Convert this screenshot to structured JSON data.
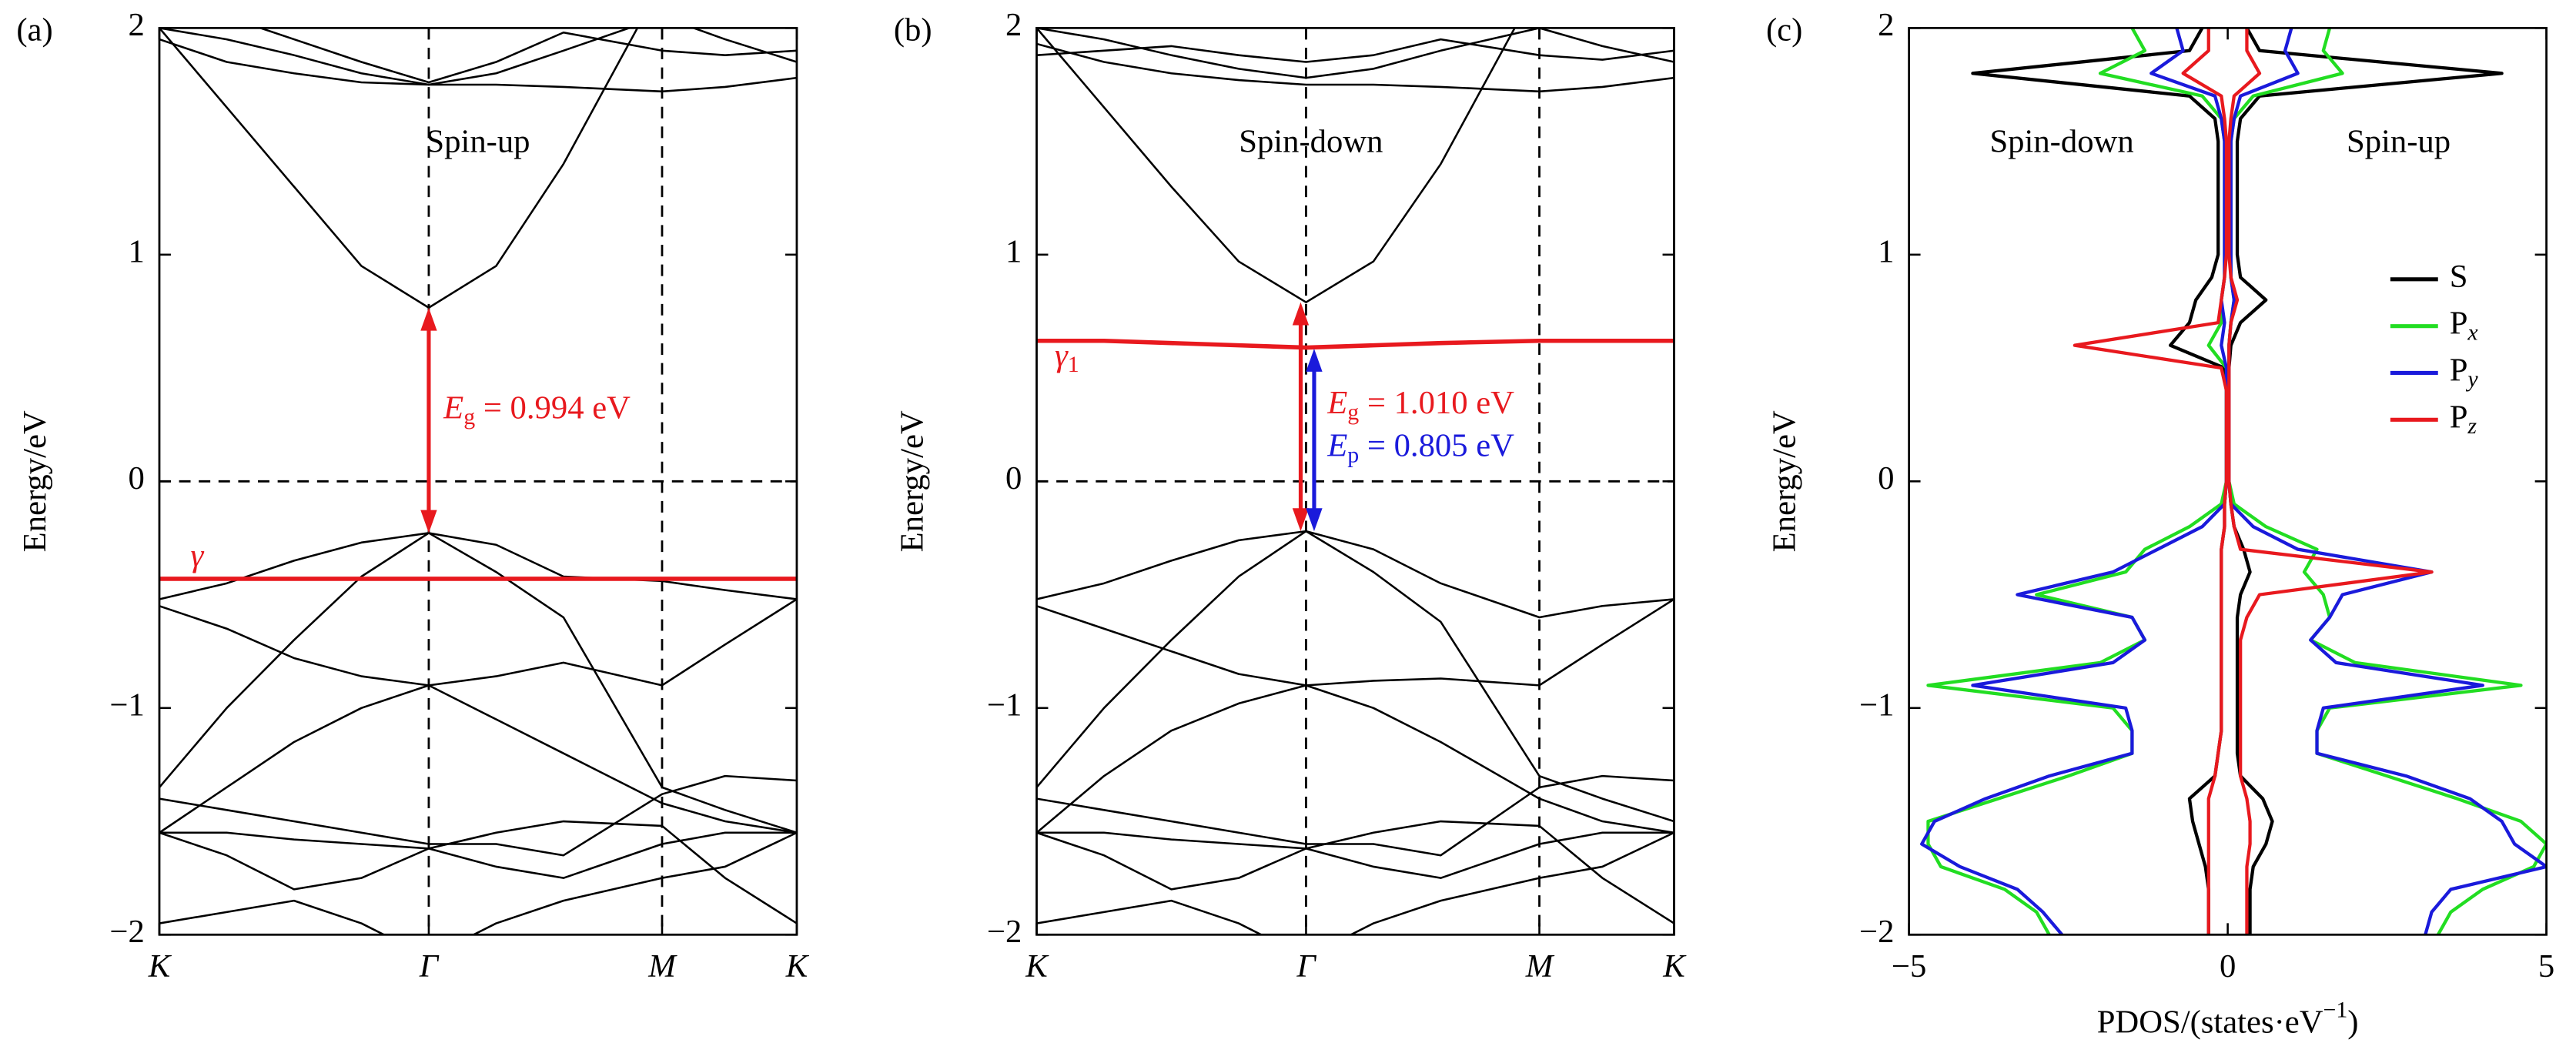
{
  "chart_data": [
    {
      "type": "line",
      "label": "(a)",
      "ylabel": "Energy/eV",
      "annotations": [
        "Spin-up"
      ],
      "guides": true,
      "x": [
        0,
        0.25,
        0.5,
        0.75,
        1,
        1.25,
        1.5,
        1.866,
        2.1,
        2.366
      ],
      "xlim": [
        0,
        2.366
      ],
      "xticks": [
        {
          "value": 0,
          "label": "K"
        },
        {
          "value": 1,
          "label": "Γ"
        },
        {
          "value": 1.866,
          "label": "M"
        },
        {
          "value": 2.366,
          "label": "K"
        }
      ],
      "ylim": [
        -2,
        2
      ],
      "yticks": [
        {
          "value": -2,
          "label": "−2"
        },
        {
          "value": -1,
          "label": "−1"
        },
        0,
        1,
        2
      ],
      "series": [
        {
          "color": "#000000",
          "values": [
            2.0,
            1.65,
            1.3,
            0.95,
            0.766,
            0.95,
            1.4,
            2.2,
            null,
            null
          ]
        },
        {
          "color": "#000000",
          "values": [
            1.95,
            1.85,
            1.8,
            1.76,
            1.75,
            1.75,
            1.74,
            1.72,
            1.74,
            1.78
          ]
        },
        {
          "color": "#000000",
          "values": [
            2.0,
            1.95,
            1.88,
            1.8,
            1.75,
            1.8,
            1.9,
            2.05,
            1.95,
            1.85
          ]
        },
        {
          "color": "#000000",
          "values": [
            2.1,
            2.05,
            1.95,
            1.85,
            1.76,
            1.85,
            1.98,
            1.9,
            1.88,
            1.9
          ]
        },
        {
          "color": "#000000",
          "values": [
            -0.52,
            -0.45,
            -0.35,
            -0.27,
            -0.228,
            -0.28,
            -0.42,
            -0.44,
            -0.48,
            -0.52
          ]
        },
        {
          "color": "#000000",
          "values": [
            -0.55,
            -0.65,
            -0.78,
            -0.86,
            -0.9,
            -0.86,
            -0.8,
            -0.9,
            -0.72,
            -0.52
          ]
        },
        {
          "color": "#000000",
          "values": [
            -1.35,
            -1.0,
            -0.7,
            -0.42,
            -0.228,
            -0.4,
            -0.6,
            -1.35,
            -1.45,
            -1.55
          ]
        },
        {
          "color": "#000000",
          "values": [
            -1.55,
            -1.35,
            -1.15,
            -1.0,
            -0.9,
            -1.05,
            -1.2,
            -1.42,
            -1.5,
            -1.55
          ]
        },
        {
          "color": "#000000",
          "values": [
            -1.4,
            -1.45,
            -1.5,
            -1.55,
            -1.6,
            -1.6,
            -1.65,
            -1.38,
            -1.3,
            -1.32
          ]
        },
        {
          "color": "#000000",
          "values": [
            -1.55,
            -1.55,
            -1.58,
            -1.6,
            -1.62,
            -1.7,
            -1.75,
            -1.6,
            -1.55,
            -1.55
          ]
        },
        {
          "color": "#000000",
          "values": [
            -1.95,
            -1.9,
            -1.85,
            -1.95,
            -2.1,
            -1.95,
            -1.85,
            -1.75,
            -1.7,
            -1.55
          ]
        },
        {
          "color": "#000000",
          "values": [
            -1.55,
            -1.65,
            -1.8,
            -1.75,
            -1.62,
            -1.55,
            -1.5,
            -1.52,
            -1.75,
            -1.95
          ]
        },
        {
          "name": "γ",
          "color": "#e8191e",
          "values": [
            -0.43,
            -0.43,
            -0.43,
            -0.43,
            -0.43,
            -0.43,
            -0.43,
            -0.43,
            -0.43,
            -0.43
          ]
        }
      ],
      "gaps": [
        {
          "symbol": "E",
          "sub": "g",
          "text": "= 0.994 eV",
          "color": "#e8191e",
          "x": 1,
          "from": -0.228,
          "to": 0.766
        }
      ]
    },
    {
      "type": "line",
      "label": "(b)",
      "ylabel": "Energy/eV",
      "annotations": [
        "Spin-down"
      ],
      "guides": true,
      "x": [
        0,
        0.25,
        0.5,
        0.75,
        1,
        1.25,
        1.5,
        1.866,
        2.1,
        2.366
      ],
      "xlim": [
        0,
        2.366
      ],
      "xticks": [
        {
          "value": 0,
          "label": "K"
        },
        {
          "value": 1,
          "label": "Γ"
        },
        {
          "value": 1.866,
          "label": "M"
        },
        {
          "value": 2.366,
          "label": "K"
        }
      ],
      "ylim": [
        -2,
        2
      ],
      "yticks": [
        {
          "value": -2,
          "label": "−2"
        },
        {
          "value": -1,
          "label": "−1"
        },
        0,
        1,
        2
      ],
      "series": [
        {
          "color": "#000000",
          "values": [
            2.0,
            1.65,
            1.3,
            0.97,
            0.79,
            0.97,
            1.4,
            2.2,
            null,
            null
          ]
        },
        {
          "color": "#000000",
          "values": [
            1.93,
            1.85,
            1.8,
            1.77,
            1.75,
            1.75,
            1.74,
            1.72,
            1.74,
            1.78
          ]
        },
        {
          "color": "#000000",
          "values": [
            2.0,
            1.95,
            1.88,
            1.82,
            1.78,
            1.82,
            1.9,
            2.0,
            1.92,
            1.85
          ]
        },
        {
          "color": "#000000",
          "values": [
            1.88,
            1.9,
            1.92,
            1.88,
            1.85,
            1.88,
            1.95,
            1.88,
            1.86,
            1.9
          ]
        },
        {
          "color": "#000000",
          "values": [
            -0.52,
            -0.45,
            -0.35,
            -0.26,
            -0.22,
            -0.3,
            -0.45,
            -0.6,
            -0.55,
            -0.52
          ]
        },
        {
          "color": "#000000",
          "values": [
            -0.55,
            -0.65,
            -0.75,
            -0.85,
            -0.9,
            -0.88,
            -0.87,
            -0.9,
            -0.72,
            -0.52
          ]
        },
        {
          "color": "#000000",
          "values": [
            -1.35,
            -1.0,
            -0.7,
            -0.42,
            -0.22,
            -0.4,
            -0.62,
            -1.3,
            -1.4,
            -1.5
          ]
        },
        {
          "color": "#000000",
          "values": [
            -1.55,
            -1.3,
            -1.1,
            -0.98,
            -0.9,
            -1.0,
            -1.15,
            -1.4,
            -1.5,
            -1.55
          ]
        },
        {
          "color": "#000000",
          "values": [
            -1.4,
            -1.45,
            -1.5,
            -1.55,
            -1.6,
            -1.6,
            -1.65,
            -1.35,
            -1.3,
            -1.32
          ]
        },
        {
          "color": "#000000",
          "values": [
            -1.55,
            -1.55,
            -1.58,
            -1.6,
            -1.62,
            -1.7,
            -1.75,
            -1.6,
            -1.55,
            -1.55
          ]
        },
        {
          "color": "#000000",
          "values": [
            -1.95,
            -1.9,
            -1.85,
            -1.95,
            -2.1,
            -1.95,
            -1.85,
            -1.75,
            -1.7,
            -1.55
          ]
        },
        {
          "color": "#000000",
          "values": [
            -1.55,
            -1.65,
            -1.8,
            -1.75,
            -1.62,
            -1.55,
            -1.5,
            -1.52,
            -1.75,
            -1.95
          ]
        },
        {
          "name": "γ",
          "name_sub": "1",
          "color": "#e8191e",
          "values": [
            0.62,
            0.62,
            0.61,
            0.6,
            0.59,
            0.6,
            0.61,
            0.62,
            0.62,
            0.62
          ]
        }
      ],
      "gaps": [
        {
          "symbol": "E",
          "sub": "g",
          "text": "= 1.010 eV",
          "color": "#e8191e",
          "x": 0.98,
          "from": -0.22,
          "to": 0.79
        },
        {
          "symbol": "E",
          "sub": "p",
          "text": "= 0.805 eV",
          "color": "#1a1adb",
          "x": 1.03,
          "from": -0.22,
          "to": 0.585
        }
      ]
    },
    {
      "type": "pdos",
      "label": "(c)",
      "ylabel": "Energy/eV",
      "annotations": [
        "Spin-down",
        "Spin-up"
      ],
      "xlabel": {
        "text": "PDOS/(states·eV",
        "sup": "−1",
        "tail": ")"
      },
      "xlim": [
        -5,
        5
      ],
      "xticks": [
        {
          "value": -5,
          "label": "−5"
        },
        0,
        5
      ],
      "ylim": [
        -2,
        2
      ],
      "yticks": [
        {
          "value": -2,
          "label": "−2"
        },
        {
          "value": -1,
          "label": "−1"
        },
        0,
        1,
        2
      ],
      "legend": "right",
      "y": [
        2,
        1.9,
        1.8,
        1.7,
        1.6,
        1.5,
        1.4,
        1.3,
        1.2,
        1.1,
        1,
        0.9,
        0.8,
        0.7,
        0.6,
        0.5,
        0.4,
        0.3,
        0.2,
        0.1,
        0,
        -0.1,
        -0.2,
        -0.3,
        -0.4,
        -0.5,
        -0.6,
        -0.7,
        -0.8,
        -0.9,
        -1,
        -1.1,
        -1.2,
        -1.3,
        -1.4,
        -1.5,
        -1.6,
        -1.7,
        -1.8,
        -1.9,
        -2
      ],
      "series": [
        {
          "name": "S",
          "color": "#000000",
          "spin_up": [
            0.3,
            0.5,
            4.3,
            0.5,
            0.2,
            0.15,
            0.15,
            0.15,
            0.15,
            0.15,
            0.15,
            0.2,
            0.6,
            0.2,
            0.05,
            0.02,
            0.02,
            0.02,
            0.02,
            0.02,
            0.02,
            0.05,
            0.1,
            0.25,
            0.35,
            0.2,
            0.15,
            0.15,
            0.15,
            0.15,
            0.15,
            0.15,
            0.15,
            0.2,
            0.55,
            0.7,
            0.6,
            0.4,
            0.35,
            0.35,
            0.35
          ],
          "spin_down": [
            -0.4,
            -0.6,
            -4.0,
            -0.6,
            -0.2,
            -0.15,
            -0.15,
            -0.15,
            -0.15,
            -0.15,
            -0.15,
            -0.25,
            -0.5,
            -0.6,
            -0.9,
            -0.05,
            -0.02,
            -0.02,
            -0.02,
            -0.02,
            -0.02,
            -0.05,
            -0.05,
            -0.1,
            -0.1,
            -0.1,
            -0.1,
            -0.1,
            -0.1,
            -0.1,
            -0.1,
            -0.1,
            -0.15,
            -0.2,
            -0.6,
            -0.55,
            -0.45,
            -0.35,
            -0.3,
            -0.3,
            -0.3
          ]
        },
        {
          "name": "P",
          "name_sub": "x",
          "color": "#22dd22",
          "spin_up": [
            1.6,
            1.5,
            1.8,
            0.4,
            0.1,
            0.05,
            0.05,
            0.05,
            0.05,
            0.05,
            0.05,
            0.05,
            0.1,
            0.05,
            0.02,
            0.02,
            0.02,
            0.02,
            0.02,
            0.02,
            0.02,
            0.1,
            0.6,
            1.4,
            1.2,
            1.5,
            1.6,
            1.3,
            2.0,
            4.6,
            1.6,
            1.4,
            1.4,
            2.5,
            3.6,
            4.6,
            5.0,
            4.8,
            4.0,
            3.5,
            3.3
          ],
          "spin_down": [
            -1.5,
            -1.3,
            -2.0,
            -0.4,
            -0.1,
            -0.05,
            -0.05,
            -0.05,
            -0.05,
            -0.05,
            -0.05,
            -0.05,
            -0.1,
            -0.1,
            -0.3,
            -0.02,
            -0.02,
            -0.02,
            -0.02,
            -0.02,
            -0.02,
            -0.1,
            -0.6,
            -1.3,
            -1.6,
            -3.0,
            -1.5,
            -1.3,
            -2.0,
            -4.7,
            -1.8,
            -1.5,
            -1.5,
            -2.5,
            -3.6,
            -4.7,
            -4.7,
            -4.5,
            -3.5,
            -3.0,
            -2.8
          ]
        },
        {
          "name": "P",
          "name_sub": "y",
          "color": "#1a1adb",
          "spin_up": [
            1.0,
            0.9,
            1.1,
            0.2,
            0.1,
            0.05,
            0.05,
            0.05,
            0.05,
            0.05,
            0.05,
            0.05,
            0.1,
            0.05,
            0.02,
            0.02,
            0.02,
            0.02,
            0.02,
            0.02,
            0.02,
            0.05,
            0.4,
            1.1,
            3.2,
            1.8,
            1.6,
            1.3,
            1.7,
            4.0,
            1.5,
            1.4,
            1.4,
            2.8,
            3.8,
            4.3,
            4.5,
            5.0,
            3.5,
            3.2,
            3.1
          ],
          "spin_down": [
            -0.8,
            -0.7,
            -1.2,
            -0.2,
            -0.1,
            -0.05,
            -0.05,
            -0.05,
            -0.05,
            -0.05,
            -0.05,
            -0.05,
            -0.1,
            -0.05,
            -0.1,
            -0.02,
            -0.02,
            -0.02,
            -0.02,
            -0.02,
            -0.02,
            -0.05,
            -0.4,
            -1.1,
            -1.8,
            -3.3,
            -1.5,
            -1.3,
            -1.8,
            -4.0,
            -1.6,
            -1.5,
            -1.5,
            -2.8,
            -3.8,
            -4.6,
            -4.8,
            -4.2,
            -3.3,
            -2.9,
            -2.6
          ]
        },
        {
          "name": "P",
          "name_sub": "z",
          "color": "#e8191e",
          "spin_up": [
            0.3,
            0.3,
            0.5,
            0.1,
            0.05,
            0.02,
            0.02,
            0.02,
            0.02,
            0.02,
            0.02,
            0.05,
            0.15,
            0.05,
            0.02,
            0.02,
            0.02,
            0.02,
            0.02,
            0.02,
            0.02,
            0.05,
            0.1,
            0.2,
            3.2,
            0.5,
            0.3,
            0.2,
            0.2,
            0.2,
            0.2,
            0.2,
            0.2,
            0.2,
            0.3,
            0.35,
            0.35,
            0.3,
            0.3,
            0.3,
            0.3
          ],
          "spin_down": [
            -0.3,
            -0.3,
            -0.7,
            -0.1,
            -0.05,
            -0.02,
            -0.02,
            -0.02,
            -0.02,
            -0.02,
            -0.02,
            -0.05,
            -0.1,
            -0.15,
            -2.4,
            -0.1,
            -0.02,
            -0.02,
            -0.02,
            -0.02,
            -0.02,
            -0.05,
            -0.05,
            -0.1,
            -0.1,
            -0.1,
            -0.1,
            -0.1,
            -0.1,
            -0.1,
            -0.1,
            -0.1,
            -0.15,
            -0.2,
            -0.3,
            -0.3,
            -0.3,
            -0.3,
            -0.3,
            -0.3,
            -0.3
          ]
        }
      ]
    }
  ]
}
